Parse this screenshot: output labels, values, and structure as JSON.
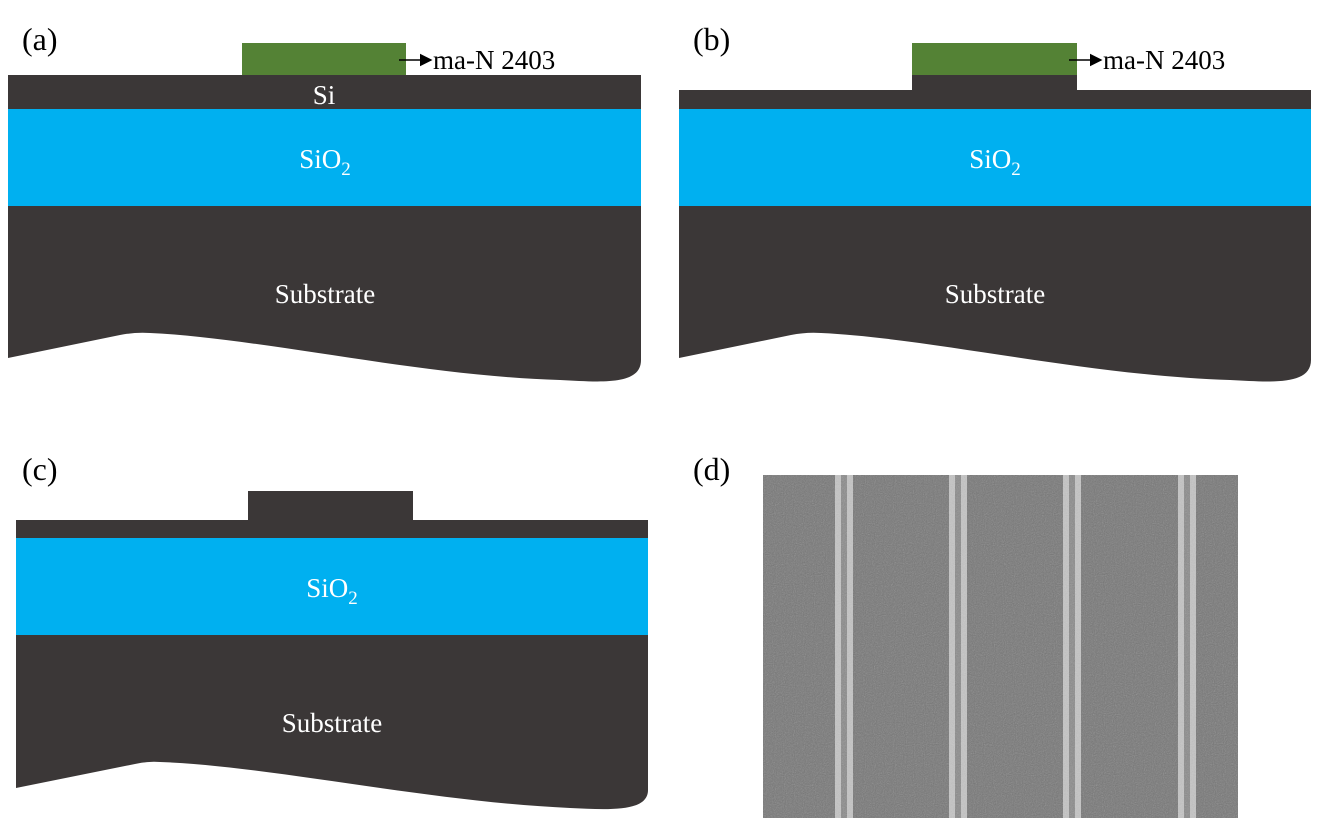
{
  "panels": {
    "a": {
      "label": "(a)",
      "resist_label": "ma-N 2403",
      "si_label": "Si",
      "oxide_label": "SiO",
      "oxide_sub": "2",
      "substrate_label": "Substrate"
    },
    "b": {
      "label": "(b)",
      "resist_label": "ma-N 2403",
      "oxide_label": "SiO",
      "oxide_sub": "2",
      "substrate_label": "Substrate"
    },
    "c": {
      "label": "(c)",
      "oxide_label": "SiO",
      "oxide_sub": "2",
      "substrate_label": "Substrate"
    },
    "d": {
      "label": "(d)",
      "sem_line_count": 4
    }
  },
  "colors": {
    "silicon": "#3b3737",
    "oxide": "#00b0f0",
    "resist": "#548235",
    "sem_background": "#767676",
    "sem_line": "#c4c4c4"
  }
}
